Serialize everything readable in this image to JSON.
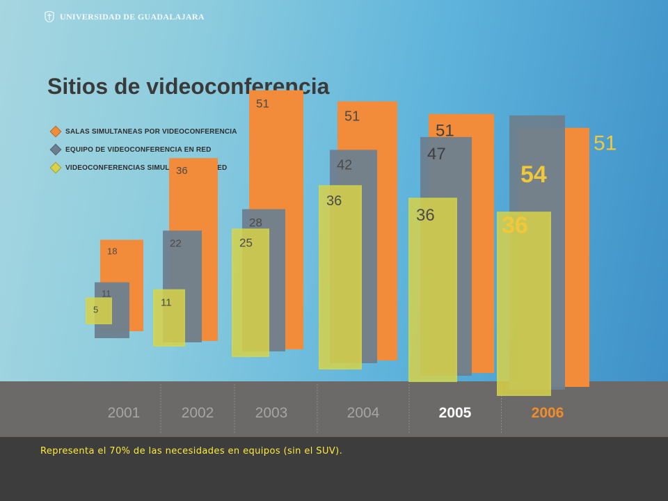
{
  "header": {
    "brand": "UNIVERSIDAD DE GUADALAJARA",
    "logo_icon": "university-seal-icon"
  },
  "slide_title": "Sitios de videoconferencia",
  "chart_data": {
    "type": "bar",
    "title": "Sitios de videoconferencia",
    "categories": [
      "2001",
      "2002",
      "2003",
      "2004",
      "2005",
      "2006"
    ],
    "highlighted_categories": {
      "2005": "#ffffff",
      "2006": "#f28c28"
    },
    "series": [
      {
        "name": "SALAS SIMULTANEAS POR VIDEOCONFERENCIA",
        "color": "#f28c3b",
        "values": [
          18,
          36,
          51,
          51,
          51,
          51
        ]
      },
      {
        "name": "EQUIPO DE VIDEOCONFERENCIA EN RED",
        "color": "#6d7f8e",
        "values": [
          11,
          22,
          28,
          42,
          47,
          54
        ]
      },
      {
        "name": "VIDEOCONFERENCIAS SIMULTANEAS EN RED",
        "color": "#d7d24a",
        "values": [
          5,
          11,
          25,
          36,
          36,
          36
        ]
      }
    ],
    "legend_position": "top-left",
    "grid": false
  },
  "caption": "Representa el 70% de las necesidades en equipos (sin el SUV)."
}
